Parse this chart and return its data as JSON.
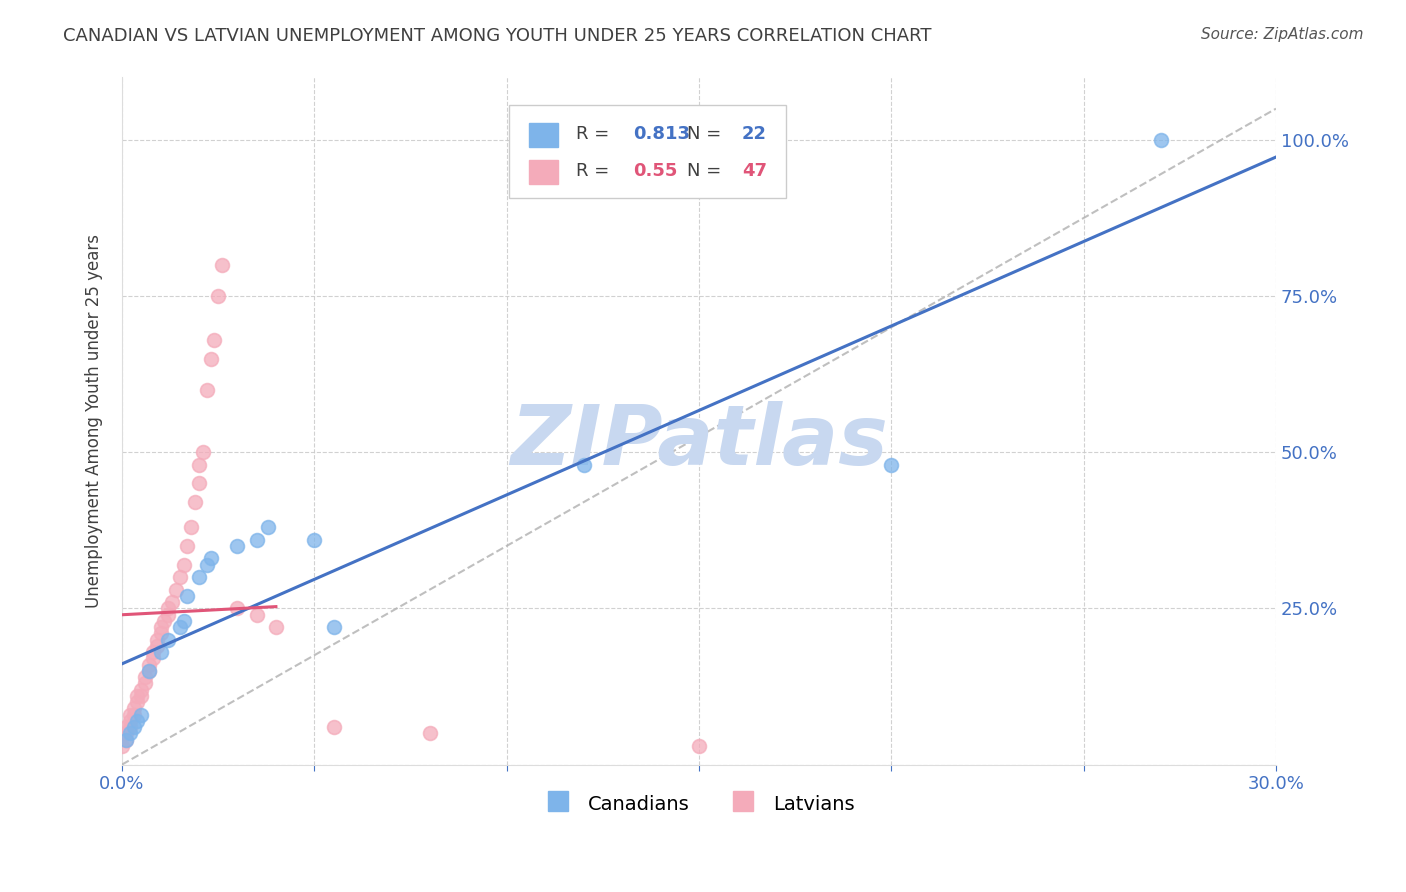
{
  "title": "CANADIAN VS LATVIAN UNEMPLOYMENT AMONG YOUTH UNDER 25 YEARS CORRELATION CHART",
  "source": "Source: ZipAtlas.com",
  "ylabel": "Unemployment Among Youth under 25 years",
  "xlim": [
    0.0,
    0.3
  ],
  "ylim": [
    0.0,
    1.1
  ],
  "right_yticks": [
    0.0,
    0.25,
    0.5,
    0.75,
    1.0
  ],
  "right_yticklabels": [
    "",
    "25.0%",
    "50.0%",
    "75.0%",
    "100.0%"
  ],
  "xticks": [
    0.0,
    0.05,
    0.1,
    0.15,
    0.2,
    0.25,
    0.3
  ],
  "xticklabels": [
    "0.0%",
    "",
    "",
    "",
    "",
    "",
    "30.0%"
  ],
  "canadian_color": "#7EB4EA",
  "latvian_color": "#F4ABBA",
  "canadian_R": 0.813,
  "canadian_N": 22,
  "latvian_R": 0.55,
  "latvian_N": 47,
  "canadian_line_color": "#4472C4",
  "latvian_line_color": "#E05578",
  "grid_color": "#CCCCCC",
  "title_color": "#404040",
  "axis_color": "#4472C4",
  "watermark_text": "ZIPatlas",
  "watermark_color": "#C8D8F0",
  "canadian_points_x": [
    0.001,
    0.002,
    0.003,
    0.004,
    0.005,
    0.007,
    0.01,
    0.012,
    0.015,
    0.016,
    0.017,
    0.02,
    0.022,
    0.023,
    0.03,
    0.035,
    0.038,
    0.05,
    0.055,
    0.12,
    0.2,
    0.27
  ],
  "canadian_points_y": [
    0.04,
    0.05,
    0.06,
    0.07,
    0.08,
    0.15,
    0.18,
    0.2,
    0.22,
    0.23,
    0.27,
    0.3,
    0.32,
    0.33,
    0.35,
    0.36,
    0.38,
    0.36,
    0.22,
    0.48,
    0.48,
    1.0
  ],
  "latvian_points_x": [
    0.0,
    0.001,
    0.001,
    0.001,
    0.002,
    0.002,
    0.002,
    0.003,
    0.003,
    0.004,
    0.004,
    0.005,
    0.005,
    0.006,
    0.006,
    0.007,
    0.007,
    0.008,
    0.008,
    0.009,
    0.009,
    0.01,
    0.01,
    0.011,
    0.012,
    0.012,
    0.013,
    0.014,
    0.015,
    0.016,
    0.017,
    0.018,
    0.019,
    0.02,
    0.02,
    0.021,
    0.022,
    0.023,
    0.024,
    0.025,
    0.026,
    0.03,
    0.035,
    0.04,
    0.055,
    0.08,
    0.15
  ],
  "latvian_points_y": [
    0.03,
    0.04,
    0.05,
    0.06,
    0.06,
    0.07,
    0.08,
    0.08,
    0.09,
    0.1,
    0.11,
    0.11,
    0.12,
    0.13,
    0.14,
    0.15,
    0.16,
    0.17,
    0.18,
    0.19,
    0.2,
    0.21,
    0.22,
    0.23,
    0.24,
    0.25,
    0.26,
    0.28,
    0.3,
    0.32,
    0.35,
    0.38,
    0.42,
    0.45,
    0.48,
    0.5,
    0.6,
    0.65,
    0.68,
    0.75,
    0.8,
    0.25,
    0.24,
    0.22,
    0.06,
    0.05,
    0.03
  ],
  "diag_slope": 3.5
}
